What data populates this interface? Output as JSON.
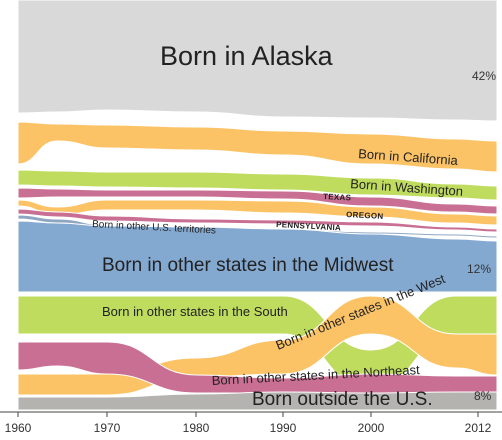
{
  "chart_data": {
    "type": "area",
    "x_ticks": [
      "1960",
      "1970",
      "1980",
      "1990",
      "2000",
      "2012"
    ],
    "series": [
      {
        "name": "Born in Alaska",
        "color": "#d9d9d9",
        "label_size": "xl",
        "percent": "42%"
      },
      {
        "name": "Born in California",
        "color": "#fbc366",
        "label_size": "md",
        "label_rotate": 4
      },
      {
        "name": "Born in Washington",
        "color": "#bfdc5f",
        "label_size": "md",
        "label_rotate": 4
      },
      {
        "name": "TEXAS",
        "color": "#c96f93",
        "label_size": "xs",
        "label_rotate": 3
      },
      {
        "name": "OREGON",
        "color": "#fbc366",
        "label_size": "xs",
        "label_rotate": 3
      },
      {
        "name": "PENNSYLVANIA",
        "color": "#c96f93",
        "label_size": "xs",
        "label_rotate": 3
      },
      {
        "name": "Born in other U.S. territories",
        "color": "#8fa6c2",
        "label_size": "sm",
        "label_rotate": 3
      },
      {
        "name": "Born in other states in the Midwest",
        "color": "#84a9d0",
        "label_size": "lg",
        "percent": "12%"
      },
      {
        "name": "Born in other states in the South",
        "color": "#bfdc5f",
        "label_size": "md"
      },
      {
        "name": "Born in other states in the West",
        "color": "#fbc366",
        "label_size": "md",
        "label_rotate": -22
      },
      {
        "name": "Born in other states in the Northeast",
        "color": "#c96f93",
        "label_size": "md",
        "label_rotate": -3
      },
      {
        "name": "Born outside the U.S.",
        "color": "#b5b3b0",
        "label_size": "lg",
        "percent": "8%"
      }
    ]
  }
}
